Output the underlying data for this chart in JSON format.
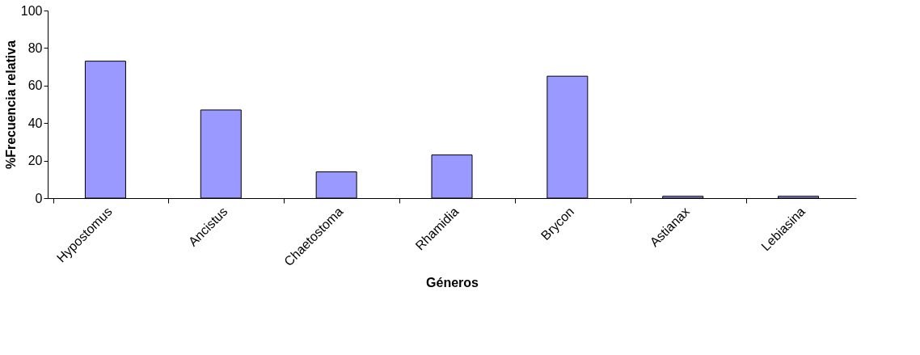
{
  "chart_data": {
    "type": "bar",
    "xlabel": "Géneros",
    "ylabel": "%Frecuencia relativa",
    "categories": [
      "Hypostomus",
      "Ancistus",
      "Chaetostoma",
      "Rhamidia",
      "Brycon",
      "Astianax",
      "Lebiasina"
    ],
    "values": [
      73,
      47,
      14,
      23,
      65,
      1,
      1
    ],
    "color": "#9999ff",
    "ylim": [
      0,
      100
    ],
    "yticks": [
      0,
      20,
      40,
      60,
      80,
      100
    ],
    "grid": false
  }
}
